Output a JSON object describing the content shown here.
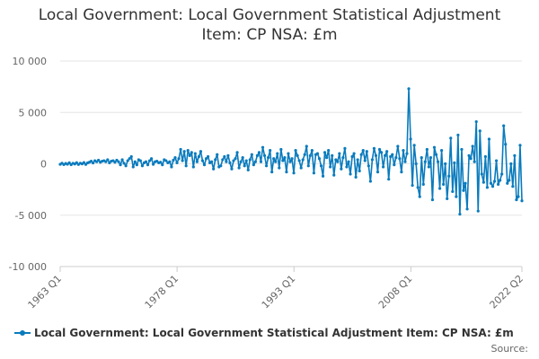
{
  "title_line1": "Local Government: Local Government Statistical Adjustment",
  "title_line2": "Item: CP NSA: £m",
  "legend_label": "Local Government: Local Government Statistical Adjustment Item: CP NSA: £m",
  "source_label": "Source:",
  "series_color": "#0a7bbd",
  "chart_data": {
    "type": "line",
    "title": "Local Government: Local Government Statistical Adjustment Item: CP NSA: £m",
    "xlabel": "",
    "ylabel": "",
    "ylim": [
      -10000,
      10000
    ],
    "yticks": [
      10000,
      5000,
      0,
      -5000,
      -10000
    ],
    "ytick_labels": [
      "10 000",
      "5 000",
      "0",
      "-5 000",
      "-10 000"
    ],
    "xticks": [
      "1963 Q1",
      "1978 Q1",
      "1993 Q1",
      "2008 Q1",
      "2022 Q2"
    ],
    "x_start": "1963 Q1",
    "x_end": "2022 Q2",
    "frequency": "quarterly",
    "grid": "horizontal",
    "legend": "bottom",
    "series": [
      {
        "name": "Local Government: Local Government Statistical Adjustment Item: CP NSA: £m",
        "values": [
          -50,
          60,
          -80,
          30,
          -40,
          100,
          -90,
          50,
          -20,
          110,
          -70,
          60,
          -10,
          120,
          -60,
          90,
          150,
          250,
          80,
          300,
          200,
          350,
          150,
          250,
          300,
          200,
          400,
          100,
          250,
          300,
          150,
          350,
          200,
          -100,
          400,
          50,
          -200,
          300,
          500,
          700,
          -300,
          200,
          -100,
          400,
          300,
          -200,
          100,
          200,
          -100,
          300,
          500,
          -50,
          200,
          250,
          100,
          150,
          -100,
          400,
          300,
          100,
          200,
          -300,
          350,
          600,
          100,
          500,
          1400,
          300,
          1200,
          -200,
          1300,
          800,
          1100,
          -300,
          1000,
          200,
          700,
          1200,
          300,
          -100,
          500,
          700,
          100,
          200,
          -500,
          400,
          900,
          -300,
          -200,
          400,
          700,
          200,
          800,
          100,
          -500,
          300,
          500,
          1100,
          -400,
          200,
          600,
          -200,
          300,
          -600,
          400,
          900,
          -100,
          200,
          800,
          1100,
          200,
          1600,
          800,
          -200,
          600,
          1300,
          -800,
          500,
          200,
          1000,
          -400,
          1400,
          300,
          600,
          -800,
          1000,
          200,
          500,
          -900,
          1300,
          800,
          300,
          -400,
          400,
          900,
          1700,
          -200,
          800,
          1300,
          -900,
          900,
          1000,
          500,
          -200,
          -1200,
          1100,
          600,
          1300,
          -300,
          800,
          -1100,
          400,
          200,
          1000,
          -500,
          600,
          1500,
          -300,
          200,
          -1000,
          700,
          1000,
          -1300,
          400,
          -700,
          900,
          1300,
          300,
          1200,
          -200,
          -1700,
          400,
          1500,
          800,
          -800,
          1400,
          1100,
          -300,
          800,
          1200,
          -1500,
          700,
          900,
          -100,
          600,
          1700,
          500,
          -800,
          1300,
          200,
          1000,
          7300,
          2400,
          -2100,
          1800,
          0,
          -2300,
          -3200,
          600,
          -2000,
          200,
          1400,
          -300,
          600,
          -3500,
          1600,
          900,
          200,
          -2400,
          1300,
          -2000,
          0,
          -3400,
          -1200,
          2500,
          -2700,
          100,
          -3200,
          2800,
          -4900,
          1400,
          -2600,
          -1900,
          -4400,
          800,
          500,
          1700,
          200,
          4100,
          -4600,
          3200,
          -1000,
          -1800,
          700,
          -2300,
          2400,
          -1900,
          -2200,
          -1700,
          300,
          -2000,
          -1600,
          -1000,
          3700,
          1900,
          -1900,
          -1600,
          0,
          -2200,
          800,
          -3500,
          -3200,
          1800,
          -3600
        ]
      }
    ]
  }
}
